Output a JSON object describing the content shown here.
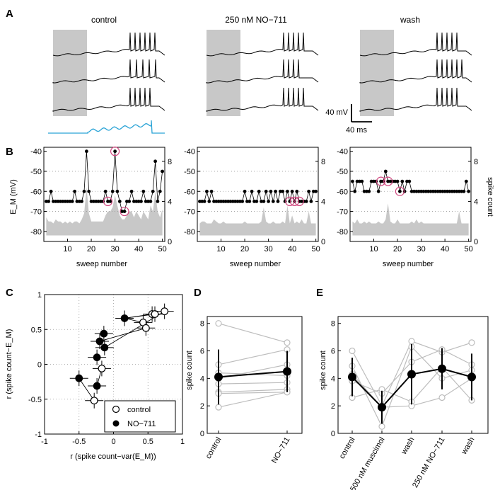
{
  "panel_labels": [
    "A",
    "B",
    "C",
    "D",
    "E"
  ],
  "colors": {
    "shade": "#c8c8c8",
    "command": "#29a3d6",
    "ring": "#d1467f",
    "light_line": "#bdbdbd",
    "grid": "#9a9a9a"
  },
  "chart_data": [
    {
      "id": "A",
      "type": "line",
      "titles": [
        "control",
        "250 nM NO−711",
        "wash"
      ],
      "scalebar": {
        "voltage": "40 mV",
        "time": "40 ms"
      },
      "traces": [
        {
          "condition": "control",
          "spike_count": 6
        },
        {
          "condition": "control",
          "spike_count": 9
        },
        {
          "condition": "control",
          "spike_count": 5
        },
        {
          "condition": "250 nM NO−711",
          "spike_count": 5
        },
        {
          "condition": "250 nM NO−711",
          "spike_count": 4
        },
        {
          "condition": "250 nM NO−711",
          "spike_count": 5
        },
        {
          "condition": "wash",
          "spike_count": 5
        },
        {
          "condition": "wash",
          "spike_count": 6
        },
        {
          "condition": "wash",
          "spike_count": 5
        }
      ],
      "command": {
        "ramp_cycles": 6,
        "note": "oscillating current command (blue) under control traces"
      }
    },
    {
      "id": "B",
      "type": "line",
      "xlabel": "sweep number",
      "ylabel": "E_M (mV)",
      "ylabel_right": "spike count",
      "xlim": [
        0,
        51
      ],
      "ylim": [
        -85,
        -38
      ],
      "ylim_right": [
        0,
        9.4
      ],
      "xticks": [
        10,
        20,
        30,
        40,
        50
      ],
      "yticks": [
        -40,
        -50,
        -60,
        -70,
        -80
      ],
      "yticks_right": [
        0,
        4,
        8
      ],
      "panels": [
        {
          "condition": "control",
          "spike_count": [
            4,
            4,
            5,
            4,
            4,
            4,
            4,
            4,
            4,
            4,
            4,
            4,
            5,
            4,
            4,
            4,
            5,
            9,
            5,
            4,
            4,
            4,
            4,
            4,
            4,
            5,
            4,
            4,
            5,
            9,
            5,
            4,
            3,
            3,
            4,
            4,
            5,
            4,
            4,
            4,
            4,
            5,
            4,
            4,
            4,
            5,
            8,
            4,
            5,
            7
          ],
          "highlighted_sweeps": [
            27,
            30,
            34
          ],
          "em_shade_top": [
            -73,
            -75,
            -75,
            -76,
            -74,
            -75,
            -75,
            -76,
            -75,
            -76,
            -75,
            -76,
            -75,
            -75,
            -76,
            -74,
            -71,
            -58,
            -71,
            -75,
            -75,
            -75,
            -75,
            -75,
            -75,
            -72,
            -70,
            -70,
            -68,
            -62,
            -67,
            -72,
            -74,
            -74,
            -72,
            -70,
            -70,
            -73,
            -70,
            -72,
            -74,
            -70,
            -72,
            -74,
            -67,
            -70,
            -60,
            -70,
            -73,
            -69
          ]
        },
        {
          "condition": "250 nM NO−711",
          "spike_count": [
            4,
            4,
            4,
            5,
            4,
            5,
            4,
            4,
            4,
            4,
            4,
            4,
            4,
            4,
            4,
            4,
            4,
            4,
            4,
            5,
            4,
            4,
            5,
            4,
            4,
            5,
            4,
            4,
            5,
            4,
            5,
            4,
            5,
            4,
            5,
            5,
            4,
            5,
            4,
            5,
            4,
            5,
            4,
            4,
            4,
            4,
            5,
            4,
            5,
            5
          ],
          "highlighted_sweeps": [
            39,
            41,
            43
          ],
          "em_shade_top": [
            -76,
            -75,
            -75,
            -76,
            -76,
            -76,
            -74,
            -75,
            -76,
            -76,
            -75,
            -76,
            -76,
            -76,
            -76,
            -76,
            -76,
            -76,
            -76,
            -75,
            -76,
            -76,
            -76,
            -76,
            -76,
            -76,
            -75,
            -68,
            -75,
            -76,
            -76,
            -75,
            -76,
            -76,
            -76,
            -75,
            -76,
            -67,
            -76,
            -72,
            -76,
            -75,
            -76,
            -74,
            -76,
            -76,
            -70,
            -76,
            -76,
            -76
          ]
        },
        {
          "condition": "wash",
          "spike_count": [
            6,
            5,
            6,
            6,
            6,
            5,
            5,
            5,
            6,
            6,
            6,
            5,
            6,
            6,
            7,
            6,
            6,
            6,
            6,
            6,
            5,
            6,
            5,
            6,
            6,
            5,
            5,
            5,
            5,
            5,
            5,
            5,
            5,
            5,
            5,
            5,
            5,
            5,
            5,
            5,
            5,
            5,
            5,
            5,
            5,
            5,
            5,
            5,
            6,
            5
          ],
          "highlighted_sweeps": [
            13,
            16,
            21
          ],
          "em_shade_top": [
            -75,
            -76,
            -74,
            -76,
            -76,
            -75,
            -76,
            -75,
            -76,
            -76,
            -76,
            -75,
            -76,
            -76,
            -74,
            -66,
            -75,
            -76,
            -76,
            -74,
            -76,
            -76,
            -76,
            -76,
            -76,
            -75,
            -76,
            -74,
            -76,
            -75,
            -76,
            -76,
            -76,
            -76,
            -76,
            -76,
            -76,
            -76,
            -76,
            -76,
            -76,
            -76,
            -76,
            -76,
            -76,
            -70,
            -76,
            -76,
            -76,
            -76
          ]
        }
      ]
    },
    {
      "id": "C",
      "type": "scatter",
      "xlabel": "r (spike count−var(E_M))",
      "ylabel": "r (spike count−E_M)",
      "xlim": [
        -1,
        1
      ],
      "ylim": [
        -1,
        1
      ],
      "xticks": [
        -1,
        -0.5,
        0,
        0.5,
        1
      ],
      "yticks": [
        -1,
        -0.5,
        0,
        0.5,
        1
      ],
      "legend": {
        "position": "bottom-right",
        "entries": [
          "control",
          "NO−711"
        ]
      },
      "series": [
        {
          "name": "control",
          "marker": "open-circle",
          "points": [
            [
              -0.28,
              -0.52
            ],
            [
              -0.17,
              -0.06
            ],
            [
              0.43,
              0.6
            ],
            [
              0.47,
              0.52
            ],
            [
              0.56,
              0.72
            ],
            [
              0.6,
              0.72
            ],
            [
              0.74,
              0.76
            ]
          ]
        },
        {
          "name": "NO−711",
          "marker": "filled-circle",
          "points": [
            [
              -0.5,
              -0.2
            ],
            [
              -0.24,
              -0.31
            ],
            [
              -0.24,
              0.1
            ],
            [
              -0.2,
              0.33
            ],
            [
              -0.13,
              0.24
            ],
            [
              0.16,
              0.66
            ],
            [
              -0.14,
              0.44
            ]
          ]
        }
      ],
      "pair_links": [
        [
          0,
          0
        ],
        [
          1,
          1
        ],
        [
          3,
          3
        ],
        [
          4,
          5
        ],
        [
          5,
          5
        ],
        [
          6,
          4
        ],
        [
          2,
          5
        ]
      ]
    },
    {
      "id": "D",
      "type": "line",
      "ylabel": "spike count",
      "categories": [
        "control",
        "NO−711"
      ],
      "ylim": [
        0,
        8.5
      ],
      "yticks": [
        0,
        2,
        4,
        6,
        8
      ],
      "individual": [
        [
          8.0,
          6.6
        ],
        [
          5.0,
          6.1
        ],
        [
          4.4,
          4.2
        ],
        [
          4.0,
          5.0
        ],
        [
          3.6,
          3.7
        ],
        [
          3.0,
          3.2
        ],
        [
          2.9,
          3.0
        ],
        [
          1.9,
          3.0
        ]
      ],
      "mean": [
        4.1,
        4.5
      ],
      "error": [
        2.0,
        1.5
      ]
    },
    {
      "id": "E",
      "type": "line",
      "ylabel": "spike count",
      "categories": [
        "control",
        "500 nM muscimol",
        "wash",
        "250 nM NO−711",
        "wash"
      ],
      "ylim": [
        0,
        8.5
      ],
      "yticks": [
        0,
        2,
        4,
        6,
        8
      ],
      "individual": [
        [
          6.0,
          2.0,
          6.7,
          5.9,
          6.6
        ],
        [
          4.9,
          0.5,
          6.3,
          4.0,
          4.6
        ],
        [
          3.8,
          2.9,
          5.2,
          6.1,
          5.0
        ],
        [
          2.6,
          3.2,
          2.3,
          4.8,
          2.4
        ],
        [
          4.3,
          1.9,
          2.0,
          2.6,
          4.0
        ]
      ],
      "mean": [
        4.1,
        1.9,
        4.3,
        4.7,
        4.1
      ],
      "error": [
        1.4,
        1.2,
        2.2,
        1.5,
        1.7
      ]
    }
  ]
}
